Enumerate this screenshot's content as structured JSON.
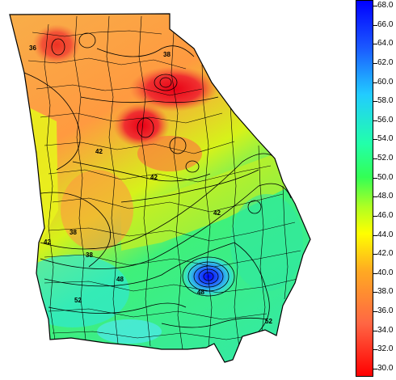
{
  "legend": {
    "ticks": [
      "68.0",
      "66.0",
      "64.0",
      "62.0",
      "60.0",
      "58.0",
      "56.0",
      "54.0",
      "52.0",
      "50.0",
      "48.0",
      "46.0",
      "44.0",
      "42.0",
      "40.0",
      "38.0",
      "36.0",
      "34.0",
      "32.0",
      "30.0"
    ],
    "min": 30.0,
    "max": 68.0
  },
  "contour_labels": [
    "36",
    "38",
    "42",
    "42",
    "42",
    "38",
    "38",
    "42",
    "48",
    "48",
    "52",
    "52"
  ],
  "colors": {
    "high": "#0000ff",
    "mid_high": "#22ffaa",
    "mid": "#ffff00",
    "low": "#ff0000"
  }
}
